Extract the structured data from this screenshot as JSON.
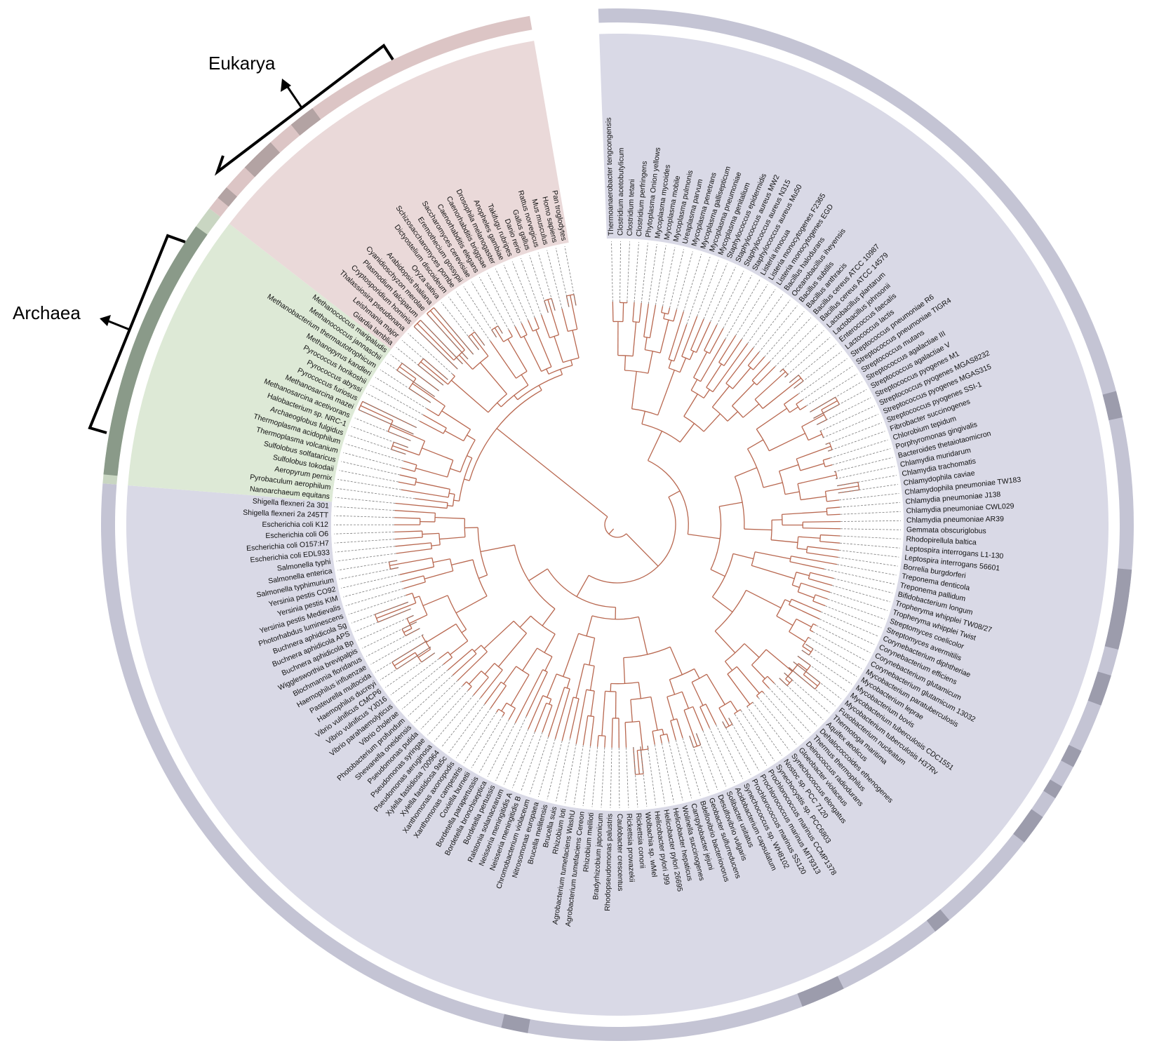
{
  "groups": {
    "eukarya": {
      "label": "Eukarya",
      "color": "#ead9d9",
      "band": "#dcc5c5",
      "band_dark": "#b3a3a3"
    },
    "archaea": {
      "label": "Archaea",
      "color": "#dde9d6",
      "band": "#c9d6c2",
      "band_dark": "#8a9a89"
    },
    "bacteria": {
      "color": "#d9d9e6",
      "band": "#c4c4d4",
      "band_dark": "#9c9cac"
    }
  },
  "colors": {
    "branch": "#b8674f",
    "leader": "#7a7a7a",
    "label": "#111111"
  },
  "leaves": [
    "Thermoanaerobacter tengcongensis",
    "Clostridium acetobutylicum",
    "Clostridium tetani",
    "Clostridium perfringens",
    "Phytoplasma Onion yellows",
    "Mycoplasma mycoides",
    "Mycoplasma mobile",
    "Mycoplasma pulmonis",
    "Ureaplasma parvum",
    "Mycoplasma penetrans",
    "Mycoplasma gallisepticum",
    "Mycoplasma pneumoniae",
    "Mycoplasma genitalium",
    "Staphylococcus epidermidis",
    "Staphylococcus aureus MW2",
    "Staphylococcus aureus N315",
    "Staphylococcus aureus Mu50",
    "Listeria innocua",
    "Listeria monocytogenes F2365",
    "Listeria monocytogenes EGD",
    "Bacillus halodurans",
    "Oceanobacillus iheyensis",
    "Bacillus subtilis",
    "Bacillus anthracis",
    "Bacillus cereus ATCC 10987",
    "Bacillus cereus ATCC 14579",
    "Lactobacillus plantarum",
    "Lactobacillus johnsonii",
    "Enterococcus faecalis",
    "Lactococcus lactis",
    "Streptococcus pneumoniae R6",
    "Streptococcus pneumoniae TIGR4",
    "Streptococcus mutans",
    "Streptococcus agalactiae III",
    "Streptococcus agalactiae V",
    "Streptococcus pyogenes M1",
    "Streptococcus pyogenes MGAS8232",
    "Streptococcus pyogenes MGAS315",
    "Streptococcus pyogenes SSI-1",
    "Fibrobacter succinogenes",
    "Chlorobium tepidum",
    "Porphyromonas gingivalis",
    "Bacteroides thetaiotaomicron",
    "Chlamydia muridarum",
    "Chlamydia trachomatis",
    "Chlamydophila caviae",
    "Chlamydophila pneumoniae TW183",
    "Chlamydia pneumoniae J138",
    "Chlamydia pneumoniae CWL029",
    "Chlamydia pneumoniae AR39",
    "Gemmata obscuriglobus",
    "Rhodopirellula baltica",
    "Leptospira interrogans L1-130",
    "Leptospira interrogans 56601",
    "Borrelia burgdorferi",
    "Treponema denticola",
    "Treponema pallidum",
    "Bifidobacterium longum",
    "Tropheryma whipplei TW08/27",
    "Tropheryma whipplei Twist",
    "Streptomyces coelicolor",
    "Streptomyces avermitilis",
    "Corynebacterium diphtheriae",
    "Corynebacterium efficiens",
    "Corynebacterium glutamicum",
    "Corynebacterium glutamicum 13032",
    "Mycobacterium paratuberculosis",
    "Mycobacterium leprae",
    "Mycobacterium bovis",
    "Mycobacterium tuberculosis CDC1551",
    "Mycobacterium tuberculosis H37Rv",
    "Fusobacterium nucleatum",
    "Thermotoga maritima",
    "Aquifex aeolicus",
    "Dehalococcoides ethenogenes",
    "Thermus thermophilus",
    "Deinococcus radiodurans",
    "Gloeobacter violaceus",
    "Synechococcus elongatus",
    "Nostoc sp. PCC 7120",
    "Synechocystis sp. PCC6803",
    "Prochlorococcus marinus CCMP1378",
    "Prochlorococcus marinus MIT9313",
    "Prochlorococcus marinus SS120",
    "Synechococcus sp. WH8102",
    "Acidobacterium capsulatum",
    "Solibacter usitatus",
    "Desulfovibrio vulgaris",
    "Geobacter sulfurreducens",
    "Bdellovibrio bacteriovorus",
    "Campylobacter jejuni",
    "Wolinella succinogenes",
    "Helicobacter hepaticus",
    "Helicobacter pylori 26695",
    "Helicobacter pylori J99",
    "Wolbachia sp. wMel",
    "Rickettsia conorii",
    "Rickettsia prowazekii",
    "Caulobacter crescentus",
    "Rhodopseudomonas palustris",
    "Bradyrhizobium japonicum",
    "Rhizobium meliloti",
    "Agrobacterium tumefaciens Cereon",
    "Agrobacterium tumefaciens WashU",
    "Rhizobium loti",
    "Brucella suis",
    "Brucella melitensis",
    "Nitrosomonas europaea",
    "Chromobacterium violaceum",
    "Neisseria meningitidis B",
    "Neisseria meningitidis A",
    "Ralstonia solanacearum",
    "Bordetella pertussis",
    "Bordetella bronchiseptica",
    "Bordetella parapertussis",
    "Coxiella burnetii",
    "Xanthomonas campestris",
    "Xanthomonas axonopodis",
    "Xylella fastidiosa 9a5c",
    "Xylella fastidiosa 700964",
    "Pseudomonas aeruginosa",
    "Pseudomonas syringae",
    "Pseudomonas putida",
    "Shewanella oneidensis",
    "Photobacterium profundum",
    "Vibrio cholerae",
    "Vibrio parahaemolyticus",
    "Vibrio vulnificus YJ016",
    "Vibrio vulnificus CMCP6",
    "Haemophilus ducreyi",
    "Pasteurella multocida",
    "Haemophilus influenzae",
    "Blochmannia floridanus",
    "Wigglesworthia brevipalpis",
    "Buchnera aphidicola Bp",
    "Buchnera aphidicola APS",
    "Buchnera aphidicola Sg",
    "Photorhabdus luminescens",
    "Yersinia pestis Medievalis",
    "Yersinia pestis KIM",
    "Yersinia pestis CO92",
    "Salmonella typhimurium",
    "Salmonella enterica",
    "Salmonella typhi",
    "Escherichia coli EDL933",
    "Escherichia coli O157:H7",
    "Escherichia coli O6",
    "Escherichia coli K12",
    "Shigella flexneri 2a 245TT",
    "Shigella flexneri 2a 301",
    "Nanoarchaeum equitans",
    "Pyrobaculum aerophilum",
    "Aeropyrum pernix",
    "Sulfolobus tokodaii",
    "Sulfolobus solfataricus",
    "Thermoplasma volcanium",
    "Thermoplasma acidophilum",
    "Archaeoglobus fulgidus",
    "Halobacterium sp. NRC-1",
    "Methanosarcina acetivorans",
    "Methanosarcina mazei",
    "Pyrococcus furiosus",
    "Pyrococcus abyssi",
    "Pyrococcus horikoshii",
    "Methanopyrus kandleri",
    "Methanobacterium thermautotrophicum",
    "Methanococcus jannaschii",
    "Methanococcus maripaludis",
    "Giardia lamblia",
    "Leishmania major",
    "Thalassiosira pseudonana",
    "Cryptosporidium hominis",
    "Plasmodium falciparum",
    "Cyanidioschyzon merolae",
    "Arabidopsis thaliana",
    "Oryza sativa",
    "Dictyostelium discoideum",
    "Schizosaccharomyces pombe",
    "Eremothecium gossypii",
    "Saccharomyces cerevisiae",
    "Caenorhabditis elegans",
    "Caenorhabditis briggsae",
    "Drosophila melanogaster",
    "Anopheles gambiae",
    "Takifugu rubripes",
    "Danio rerio",
    "Gallus gallus",
    "Rattus norvegicus",
    "Mus musculus",
    "Homo sapiens",
    "Pan troglodytes"
  ]
}
